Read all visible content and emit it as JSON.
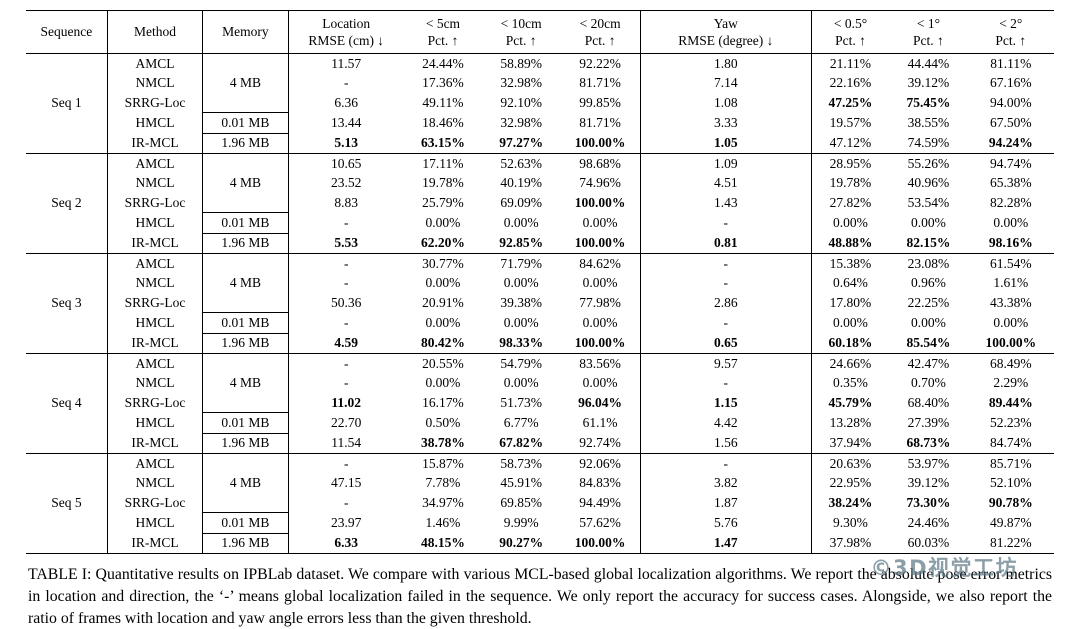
{
  "table": {
    "header": {
      "sequence": "Sequence",
      "method": "Method",
      "memory": "Memory",
      "metrics": [
        {
          "line1": "Location",
          "line2": "RMSE (cm) ↓"
        },
        {
          "line1": "< 5cm",
          "line2": "Pct. ↑"
        },
        {
          "line1": "< 10cm",
          "line2": "Pct. ↑"
        },
        {
          "line1": "< 20cm",
          "line2": "Pct. ↑"
        },
        {
          "line1": "Yaw",
          "line2": "RMSE (degree) ↓"
        },
        {
          "line1": "< 0.5°",
          "line2": "Pct. ↑"
        },
        {
          "line1": "< 1°",
          "line2": "Pct. ↑"
        },
        {
          "line1": "< 2°",
          "line2": "Pct. ↑"
        }
      ]
    },
    "memory_labels": [
      {
        "label": "4 MB",
        "span": 3
      },
      {
        "label": "0.01 MB",
        "span": 1
      },
      {
        "label": "1.96 MB",
        "span": 1
      }
    ],
    "groups": [
      {
        "sequence": "Seq 1",
        "rows": [
          {
            "method": "AMCL",
            "values": [
              "11.57",
              "24.44%",
              "58.89%",
              "92.22%",
              "1.80",
              "21.11%",
              "44.44%",
              "81.11%"
            ],
            "bold": []
          },
          {
            "method": "NMCL",
            "values": [
              "-",
              "17.36%",
              "32.98%",
              "81.71%",
              "7.14",
              "22.16%",
              "39.12%",
              "67.16%"
            ],
            "bold": []
          },
          {
            "method": "SRRG-Loc",
            "values": [
              "6.36",
              "49.11%",
              "92.10%",
              "99.85%",
              "1.08",
              "47.25%",
              "75.45%",
              "94.00%"
            ],
            "bold": [
              5,
              6
            ]
          },
          {
            "method": "HMCL",
            "values": [
              "13.44",
              "18.46%",
              "32.98%",
              "81.71%",
              "3.33",
              "19.57%",
              "38.55%",
              "67.50%"
            ],
            "bold": []
          },
          {
            "method": "IR-MCL",
            "values": [
              "5.13",
              "63.15%",
              "97.27%",
              "100.00%",
              "1.05",
              "47.12%",
              "74.59%",
              "94.24%"
            ],
            "bold": [
              0,
              1,
              2,
              3,
              4,
              7
            ]
          }
        ]
      },
      {
        "sequence": "Seq 2",
        "rows": [
          {
            "method": "AMCL",
            "values": [
              "10.65",
              "17.11%",
              "52.63%",
              "98.68%",
              "1.09",
              "28.95%",
              "55.26%",
              "94.74%"
            ],
            "bold": []
          },
          {
            "method": "NMCL",
            "values": [
              "23.52",
              "19.78%",
              "40.19%",
              "74.96%",
              "4.51",
              "19.78%",
              "40.96%",
              "65.38%"
            ],
            "bold": []
          },
          {
            "method": "SRRG-Loc",
            "values": [
              "8.83",
              "25.79%",
              "69.09%",
              "100.00%",
              "1.43",
              "27.82%",
              "53.54%",
              "82.28%"
            ],
            "bold": [
              3
            ]
          },
          {
            "method": "HMCL",
            "values": [
              "-",
              "0.00%",
              "0.00%",
              "0.00%",
              "-",
              "0.00%",
              "0.00%",
              "0.00%"
            ],
            "bold": []
          },
          {
            "method": "IR-MCL",
            "values": [
              "5.53",
              "62.20%",
              "92.85%",
              "100.00%",
              "0.81",
              "48.88%",
              "82.15%",
              "98.16%"
            ],
            "bold": [
              0,
              1,
              2,
              3,
              4,
              5,
              6,
              7
            ]
          }
        ]
      },
      {
        "sequence": "Seq 3",
        "rows": [
          {
            "method": "AMCL",
            "values": [
              "-",
              "30.77%",
              "71.79%",
              "84.62%",
              "-",
              "15.38%",
              "23.08%",
              "61.54%"
            ],
            "bold": []
          },
          {
            "method": "NMCL",
            "values": [
              "-",
              "0.00%",
              "0.00%",
              "0.00%",
              "-",
              "0.64%",
              "0.96%",
              "1.61%"
            ],
            "bold": []
          },
          {
            "method": "SRRG-Loc",
            "values": [
              "50.36",
              "20.91%",
              "39.38%",
              "77.98%",
              "2.86",
              "17.80%",
              "22.25%",
              "43.38%"
            ],
            "bold": []
          },
          {
            "method": "HMCL",
            "values": [
              "-",
              "0.00%",
              "0.00%",
              "0.00%",
              "-",
              "0.00%",
              "0.00%",
              "0.00%"
            ],
            "bold": []
          },
          {
            "method": "IR-MCL",
            "values": [
              "4.59",
              "80.42%",
              "98.33%",
              "100.00%",
              "0.65",
              "60.18%",
              "85.54%",
              "100.00%"
            ],
            "bold": [
              0,
              1,
              2,
              3,
              4,
              5,
              6,
              7
            ]
          }
        ]
      },
      {
        "sequence": "Seq 4",
        "rows": [
          {
            "method": "AMCL",
            "values": [
              "-",
              "20.55%",
              "54.79%",
              "83.56%",
              "9.57",
              "24.66%",
              "42.47%",
              "68.49%"
            ],
            "bold": []
          },
          {
            "method": "NMCL",
            "values": [
              "-",
              "0.00%",
              "0.00%",
              "0.00%",
              "-",
              "0.35%",
              "0.70%",
              "2.29%"
            ],
            "bold": []
          },
          {
            "method": "SRRG-Loc",
            "values": [
              "11.02",
              "16.17%",
              "51.73%",
              "96.04%",
              "1.15",
              "45.79%",
              "68.40%",
              "89.44%"
            ],
            "bold": [
              0,
              3,
              4,
              5,
              7
            ]
          },
          {
            "method": "HMCL",
            "values": [
              "22.70",
              "0.50%",
              "6.77%",
              "61.1%",
              "4.42",
              "13.28%",
              "27.39%",
              "52.23%"
            ],
            "bold": []
          },
          {
            "method": "IR-MCL",
            "values": [
              "11.54",
              "38.78%",
              "67.82%",
              "92.74%",
              "1.56",
              "37.94%",
              "68.73%",
              "84.74%"
            ],
            "bold": [
              1,
              2,
              6
            ]
          }
        ]
      },
      {
        "sequence": "Seq 5",
        "rows": [
          {
            "method": "AMCL",
            "values": [
              "-",
              "15.87%",
              "58.73%",
              "92.06%",
              "-",
              "20.63%",
              "53.97%",
              "85.71%"
            ],
            "bold": []
          },
          {
            "method": "NMCL",
            "values": [
              "47.15",
              "7.78%",
              "45.91%",
              "84.83%",
              "3.82",
              "22.95%",
              "39.12%",
              "52.10%"
            ],
            "bold": []
          },
          {
            "method": "SRRG-Loc",
            "values": [
              "-",
              "34.97%",
              "69.85%",
              "94.49%",
              "1.87",
              "38.24%",
              "73.30%",
              "90.78%"
            ],
            "bold": [
              5,
              6,
              7
            ]
          },
          {
            "method": "HMCL",
            "values": [
              "23.97",
              "1.46%",
              "9.99%",
              "57.62%",
              "5.76",
              "9.30%",
              "24.46%",
              "49.87%"
            ],
            "bold": []
          },
          {
            "method": "IR-MCL",
            "values": [
              "6.33",
              "48.15%",
              "90.27%",
              "100.00%",
              "1.47",
              "37.98%",
              "60.03%",
              "81.22%"
            ],
            "bold": [
              0,
              1,
              2,
              3,
              4
            ]
          }
        ]
      }
    ]
  },
  "caption": "TABLE I: Quantitative results on IPBLab dataset. We compare with various MCL-based global localization algorithms. We report the absolute pose error metrics in location and direction, the ‘-’ means global localization failed in the sequence. We only report the accuracy for success cases. Alongside, we also report the ratio of frames with location and yaw angle errors less than the given threshold.",
  "watermark": {
    "text": "©3D视觉工坊"
  }
}
